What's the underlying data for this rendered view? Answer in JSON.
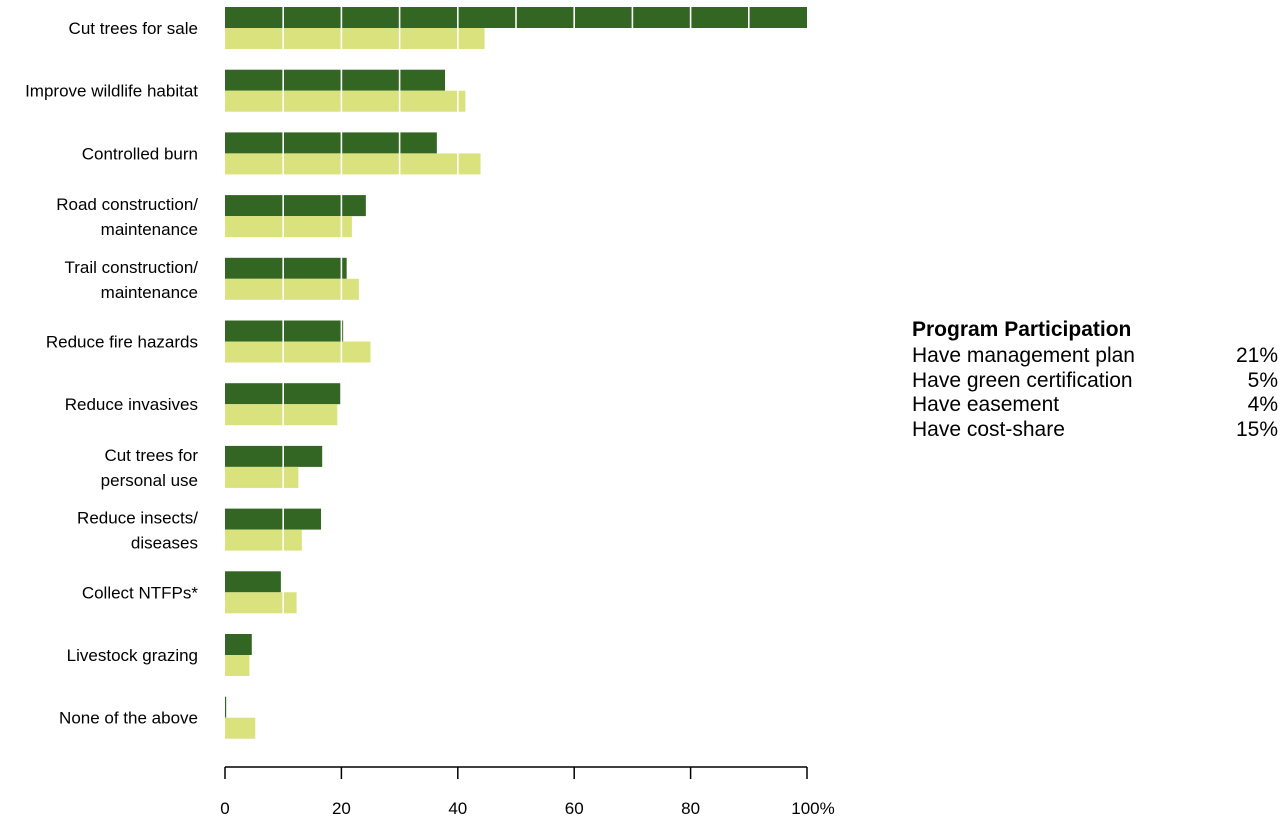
{
  "colors": {
    "series1": "#336622",
    "series2": "#d9e27d",
    "gridline": "#ffffff",
    "axis": "#000000"
  },
  "chart_data": {
    "type": "bar",
    "orientation": "horizontal",
    "categories": [
      [
        "Cut trees for sale"
      ],
      [
        "Improve wildlife habitat"
      ],
      [
        "Controlled burn"
      ],
      [
        "Road construction/",
        "maintenance"
      ],
      [
        "Trail construction/",
        "maintenance"
      ],
      [
        "Reduce fire hazards"
      ],
      [
        "Reduce invasives"
      ],
      [
        "Cut trees for",
        "personal use"
      ],
      [
        "Reduce insects/",
        "diseases"
      ],
      [
        "Collect NTFPs*"
      ],
      [
        "Livestock grazing"
      ],
      [
        "None of the above"
      ]
    ],
    "series": [
      {
        "values": [
          100,
          37.8,
          36.4,
          24.2,
          20.9,
          20.3,
          19.8,
          16.7,
          16.5,
          9.6,
          4.6,
          0.2
        ]
      },
      {
        "values": [
          44.6,
          41.3,
          43.9,
          21.8,
          23.0,
          25.0,
          19.3,
          12.6,
          13.2,
          12.3,
          4.2,
          5.2
        ]
      }
    ],
    "xlim": [
      0,
      100
    ],
    "xticks": [
      "0",
      "20",
      "40",
      "60",
      "80",
      "100%"
    ],
    "xtick_values": [
      0,
      20,
      40,
      60,
      80,
      100
    ],
    "gridlines": "white vertical lines drawn over bars every 10 units",
    "legend": "none"
  },
  "program": {
    "title": "Program Participation",
    "rows": [
      {
        "label": "Have management plan",
        "value": "21%"
      },
      {
        "label": "Have green certification",
        "value": "5%"
      },
      {
        "label": "Have easement",
        "value": "4%"
      },
      {
        "label": "Have cost-share",
        "value": "15%"
      }
    ]
  }
}
